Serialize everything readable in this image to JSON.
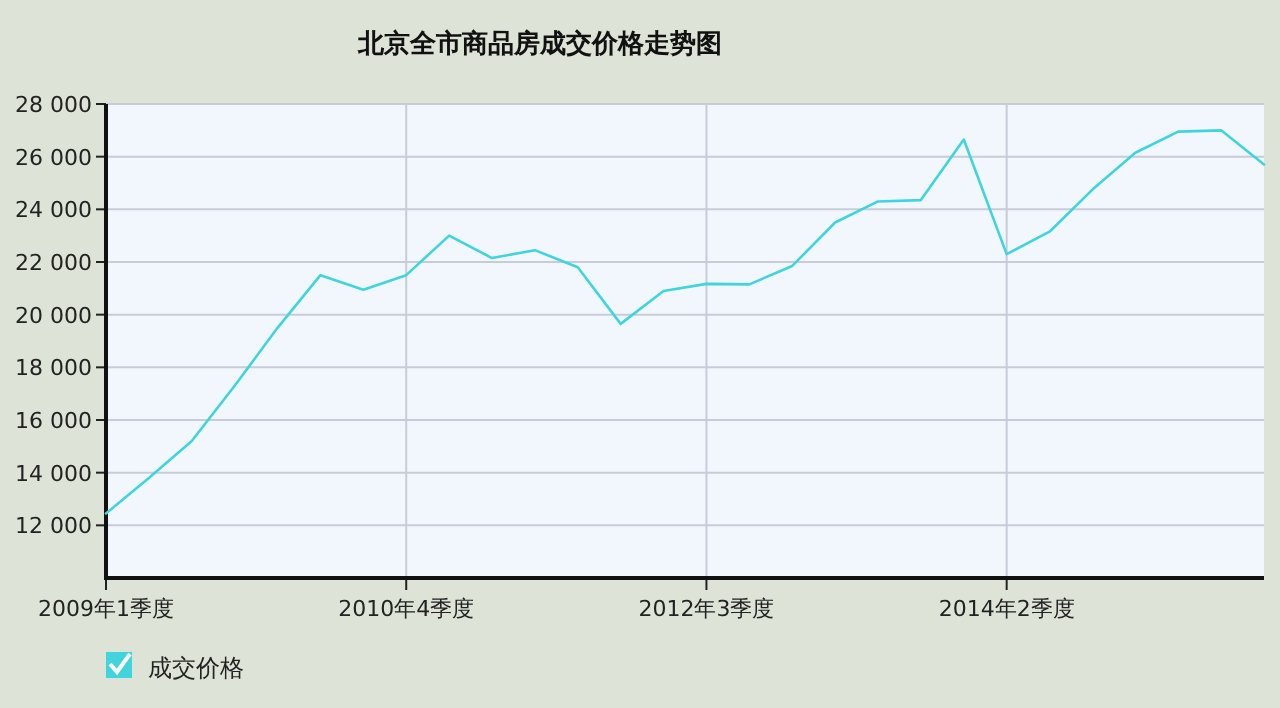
{
  "chart_data": {
    "type": "line",
    "title": "北京全市商品房成交价格走势图",
    "categories": [
      "2009年1季度",
      null,
      null,
      null,
      null,
      null,
      null,
      "2010年4季度",
      null,
      null,
      null,
      null,
      null,
      null,
      "2012年3季度",
      null,
      null,
      null,
      null,
      null,
      null,
      "2014年2季度",
      null,
      null,
      null,
      null,
      null,
      null
    ],
    "series": [
      {
        "name": "成交价格",
        "color": "#40d4dc",
        "values": [
          12450,
          13800,
          15200,
          17300,
          19500,
          21500,
          20950,
          21500,
          23000,
          22150,
          22450,
          21800,
          19650,
          20900,
          21170,
          21150,
          21850,
          23500,
          24300,
          24350,
          26650,
          22300,
          23150,
          24750,
          26150,
          26950,
          27000,
          25700
        ]
      }
    ],
    "ylim": [
      10000,
      28000
    ],
    "yticks": [
      {
        "value": 12000,
        "label": "12 000"
      },
      {
        "value": 14000,
        "label": "14 000"
      },
      {
        "value": 16000,
        "label": "16 000"
      },
      {
        "value": 18000,
        "label": "18 000"
      },
      {
        "value": 20000,
        "label": "20 000"
      },
      {
        "value": 22000,
        "label": "22 000"
      },
      {
        "value": 24000,
        "label": "24 000"
      },
      {
        "value": 26000,
        "label": "26 000"
      },
      {
        "value": 28000,
        "label": "28 000"
      }
    ],
    "grid": true,
    "legend": "bottom left",
    "marker": "none",
    "line_style": "solid"
  }
}
